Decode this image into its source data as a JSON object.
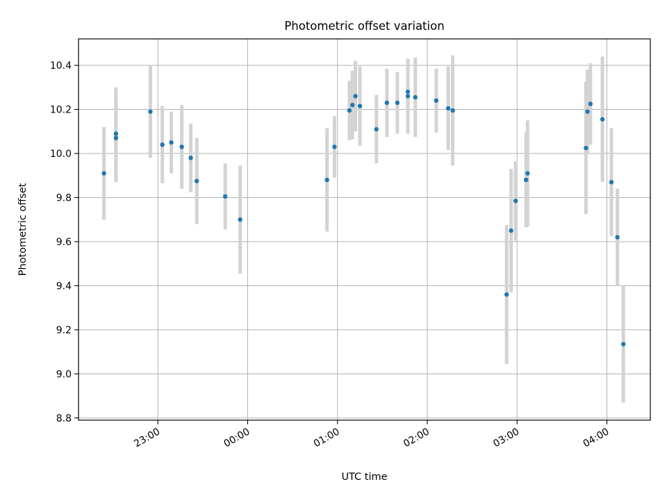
{
  "chart_data": {
    "type": "scatter",
    "title": "Photometric offset variation",
    "xlabel": "UTC time",
    "ylabel": "Photometric offset",
    "x_axis": {
      "kind": "time",
      "range": [
        "22:07",
        "04:29"
      ],
      "ticks": [
        "23:00",
        "00:00",
        "01:00",
        "02:00",
        "03:00",
        "04:00"
      ]
    },
    "y_axis": {
      "range": [
        8.79,
        10.52
      ],
      "ticks": [
        "8.8",
        "9.0",
        "9.2",
        "9.4",
        "9.6",
        "9.8",
        "10.0",
        "10.2",
        "10.4"
      ]
    },
    "grid": true,
    "colors": {
      "point": "#1f77b4",
      "errorbar": "#d3d3d3",
      "grid": "#b0b0b0"
    },
    "points": [
      {
        "x": "22:24",
        "y": 9.91,
        "err": 0.21
      },
      {
        "x": "22:32",
        "y": 10.07,
        "err": 0.2
      },
      {
        "x": "22:32",
        "y": 10.09,
        "err": 0.21
      },
      {
        "x": "22:55",
        "y": 10.19,
        "err": 0.21
      },
      {
        "x": "23:03",
        "y": 10.04,
        "err": 0.175
      },
      {
        "x": "23:09",
        "y": 10.05,
        "err": 0.14
      },
      {
        "x": "23:16",
        "y": 10.03,
        "err": 0.19
      },
      {
        "x": "23:22",
        "y": 9.98,
        "err": 0.155
      },
      {
        "x": "23:26",
        "y": 9.875,
        "err": 0.195
      },
      {
        "x": "23:45",
        "y": 9.805,
        "err": 0.15
      },
      {
        "x": "23:55",
        "y": 9.7,
        "err": 0.245
      },
      {
        "x": "00:53",
        "y": 9.88,
        "err": 0.235
      },
      {
        "x": "00:58",
        "y": 10.03,
        "err": 0.14
      },
      {
        "x": "01:08",
        "y": 10.195,
        "err": 0.135
      },
      {
        "x": "01:10",
        "y": 10.22,
        "err": 0.155
      },
      {
        "x": "01:12",
        "y": 10.26,
        "err": 0.16
      },
      {
        "x": "01:15",
        "y": 10.215,
        "err": 0.18
      },
      {
        "x": "01:26",
        "y": 10.11,
        "err": 0.155
      },
      {
        "x": "01:33",
        "y": 10.23,
        "err": 0.155
      },
      {
        "x": "01:40",
        "y": 10.23,
        "err": 0.14
      },
      {
        "x": "01:47",
        "y": 10.26,
        "err": 0.17
      },
      {
        "x": "01:47",
        "y": 10.28,
        "err": 0.15
      },
      {
        "x": "01:52",
        "y": 10.255,
        "err": 0.18
      },
      {
        "x": "02:06",
        "y": 10.24,
        "err": 0.145
      },
      {
        "x": "02:14",
        "y": 10.205,
        "err": 0.19
      },
      {
        "x": "02:17",
        "y": 10.195,
        "err": 0.25
      },
      {
        "x": "02:53",
        "y": 9.36,
        "err": 0.315
      },
      {
        "x": "02:56",
        "y": 9.65,
        "err": 0.28
      },
      {
        "x": "02:59",
        "y": 9.785,
        "err": 0.18
      },
      {
        "x": "03:06",
        "y": 9.88,
        "err": 0.215
      },
      {
        "x": "03:07",
        "y": 9.91,
        "err": 0.24
      },
      {
        "x": "03:46",
        "y": 10.025,
        "err": 0.3
      },
      {
        "x": "03:47",
        "y": 10.19,
        "err": 0.19
      },
      {
        "x": "03:49",
        "y": 10.225,
        "err": 0.185
      },
      {
        "x": "03:57",
        "y": 10.155,
        "err": 0.285
      },
      {
        "x": "04:03",
        "y": 9.87,
        "err": 0.245
      },
      {
        "x": "04:07",
        "y": 9.62,
        "err": 0.22
      },
      {
        "x": "04:11",
        "y": 9.135,
        "err": 0.265
      }
    ]
  }
}
